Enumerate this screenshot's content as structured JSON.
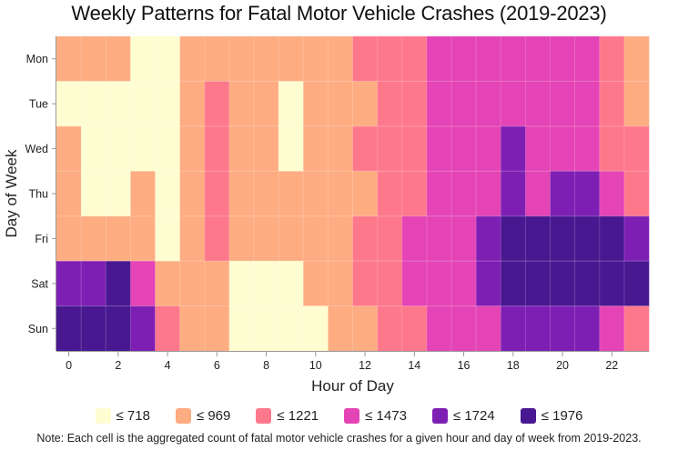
{
  "chart_data": {
    "type": "heatmap",
    "title": "Weekly Patterns for Fatal Motor Vehicle Crashes (2019-2023)",
    "xlabel": "Hour of Day",
    "ylabel": "Day of Week",
    "x": [
      0,
      1,
      2,
      3,
      4,
      5,
      6,
      7,
      8,
      9,
      10,
      11,
      12,
      13,
      14,
      15,
      16,
      17,
      18,
      19,
      20,
      21,
      22,
      23
    ],
    "x_tick_labels": [
      "0",
      "2",
      "4",
      "6",
      "8",
      "10",
      "12",
      "14",
      "16",
      "18",
      "20",
      "22"
    ],
    "x_tick_values": [
      0,
      2,
      4,
      6,
      8,
      10,
      12,
      14,
      16,
      18,
      20,
      22
    ],
    "y": [
      "Mon",
      "Tue",
      "Wed",
      "Thu",
      "Fri",
      "Sat",
      "Sun"
    ],
    "bins": [
      {
        "label": "≤ 718",
        "max": 718,
        "color": "#fefdd1"
      },
      {
        "label": "≤ 969",
        "max": 969,
        "color": "#feac82"
      },
      {
        "label": "≤ 1221",
        "max": 1221,
        "color": "#fe788c"
      },
      {
        "label": "≤ 1473",
        "max": 1473,
        "color": "#e444b5"
      },
      {
        "label": "≤ 1724",
        "max": 1724,
        "color": "#7e1fb4"
      },
      {
        "label": "≤ 1976",
        "max": 1976,
        "color": "#481891"
      }
    ],
    "bin_index_grid": [
      [
        1,
        1,
        1,
        0,
        0,
        1,
        1,
        1,
        1,
        1,
        1,
        1,
        2,
        2,
        2,
        3,
        3,
        3,
        3,
        3,
        3,
        3,
        2,
        1
      ],
      [
        0,
        0,
        0,
        0,
        0,
        1,
        2,
        1,
        1,
        0,
        1,
        1,
        1,
        2,
        2,
        3,
        3,
        3,
        3,
        3,
        3,
        3,
        2,
        1
      ],
      [
        1,
        0,
        0,
        0,
        0,
        1,
        2,
        1,
        1,
        0,
        1,
        1,
        2,
        2,
        2,
        3,
        3,
        3,
        4,
        3,
        3,
        3,
        2,
        2
      ],
      [
        1,
        0,
        0,
        1,
        0,
        1,
        2,
        1,
        1,
        1,
        1,
        1,
        1,
        2,
        2,
        3,
        3,
        3,
        4,
        3,
        4,
        4,
        3,
        2
      ],
      [
        1,
        1,
        1,
        1,
        0,
        1,
        2,
        1,
        1,
        1,
        1,
        1,
        2,
        2,
        3,
        3,
        3,
        4,
        5,
        5,
        5,
        5,
        5,
        4
      ],
      [
        4,
        4,
        5,
        3,
        1,
        1,
        1,
        0,
        0,
        0,
        1,
        1,
        2,
        2,
        3,
        3,
        3,
        4,
        5,
        5,
        5,
        5,
        5,
        5
      ],
      [
        5,
        5,
        5,
        4,
        2,
        1,
        1,
        0,
        0,
        0,
        0,
        1,
        1,
        2,
        2,
        3,
        3,
        3,
        4,
        4,
        4,
        4,
        3,
        2
      ]
    ],
    "legend_position": "bottom",
    "note": "Note: Each cell is the aggregated count of fatal motor vehicle crashes for a given hour and day of week from 2019-2023."
  }
}
